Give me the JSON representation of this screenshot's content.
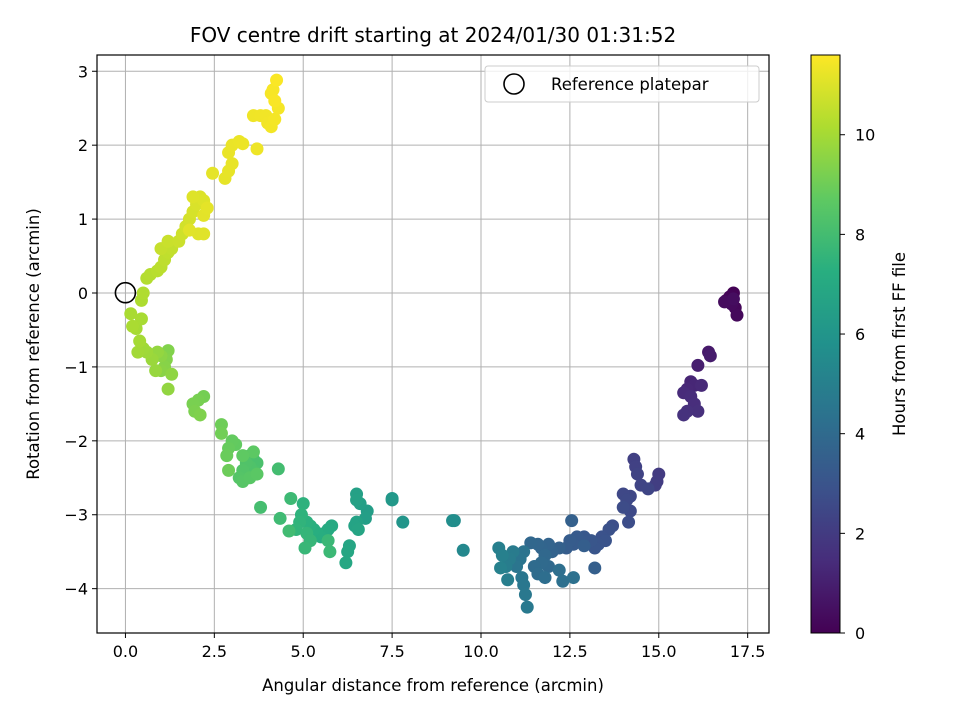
{
  "chart_data": {
    "type": "scatter",
    "title": "FOV centre drift starting at 2024/01/30 01:31:52",
    "xlabel": "Angular distance from reference (arcmin)",
    "ylabel": "Rotation from reference (arcmin)",
    "xlim": [
      -0.8,
      18.1
    ],
    "ylim": [
      -4.6,
      3.22
    ],
    "x_ticks": [
      0.0,
      2.5,
      5.0,
      7.5,
      10.0,
      12.5,
      15.0,
      17.5
    ],
    "x_tick_labels": [
      "0.0",
      "2.5",
      "5.0",
      "7.5",
      "10.0",
      "12.5",
      "15.0",
      "17.5"
    ],
    "y_ticks": [
      -4,
      -3,
      -2,
      -1,
      0,
      1,
      2,
      3
    ],
    "y_tick_labels": [
      "−4",
      "−3",
      "−2",
      "−1",
      "0",
      "1",
      "2",
      "3"
    ],
    "grid": true,
    "legend": {
      "position": "top-right",
      "entries": [
        "Reference platepar"
      ]
    },
    "colorbar": {
      "label": "Hours from first FF file",
      "colormap": "viridis",
      "range": [
        0,
        11.6
      ],
      "ticks": [
        0,
        2,
        4,
        6,
        8,
        10
      ],
      "tick_labels": [
        "0",
        "2",
        "4",
        "6",
        "8",
        "10"
      ]
    },
    "reference_point": {
      "x": 0,
      "y": 0,
      "name": "Reference platepar"
    },
    "points": [
      [
        17.1,
        0.0,
        0.05
      ],
      [
        17.0,
        -0.05,
        0.1
      ],
      [
        16.9,
        -0.1,
        0.15
      ],
      [
        17.15,
        -0.2,
        0.2
      ],
      [
        17.2,
        -0.3,
        0.25
      ],
      [
        17.05,
        -0.15,
        0.3
      ],
      [
        16.85,
        -0.12,
        0.35
      ],
      [
        17.1,
        -0.08,
        0.4
      ],
      [
        16.4,
        -0.8,
        0.8
      ],
      [
        16.45,
        -0.85,
        0.9
      ],
      [
        16.1,
        -0.98,
        1.0
      ],
      [
        15.9,
        -1.2,
        1.2
      ],
      [
        16.0,
        -1.25,
        1.25
      ],
      [
        15.8,
        -1.3,
        1.3
      ],
      [
        16.2,
        -1.25,
        1.35
      ],
      [
        15.7,
        -1.35,
        1.4
      ],
      [
        15.9,
        -1.4,
        1.45
      ],
      [
        16.0,
        -1.5,
        1.5
      ],
      [
        16.1,
        -1.6,
        1.55
      ],
      [
        15.8,
        -1.6,
        1.6
      ],
      [
        15.7,
        -1.65,
        1.65
      ],
      [
        15.0,
        -2.45,
        2.0
      ],
      [
        14.95,
        -2.55,
        2.05
      ],
      [
        14.9,
        -2.6,
        2.1
      ],
      [
        14.3,
        -2.25,
        2.2
      ],
      [
        14.35,
        -2.35,
        2.25
      ],
      [
        14.4,
        -2.45,
        2.3
      ],
      [
        14.5,
        -2.6,
        2.35
      ],
      [
        14.7,
        -2.65,
        2.4
      ],
      [
        14.2,
        -2.75,
        2.45
      ],
      [
        14.0,
        -2.72,
        2.5
      ],
      [
        14.1,
        -2.8,
        2.55
      ],
      [
        14.2,
        -2.95,
        2.6
      ],
      [
        14.0,
        -2.9,
        2.65
      ],
      [
        14.15,
        -3.1,
        2.7
      ],
      [
        13.7,
        -3.15,
        2.8
      ],
      [
        13.6,
        -3.2,
        2.85
      ],
      [
        13.4,
        -3.3,
        2.9
      ],
      [
        13.5,
        -3.35,
        2.95
      ],
      [
        13.3,
        -3.4,
        3.0
      ],
      [
        13.2,
        -3.45,
        3.05
      ],
      [
        13.1,
        -3.35,
        3.1
      ],
      [
        12.9,
        -3.3,
        3.15
      ],
      [
        12.8,
        -3.35,
        3.2
      ],
      [
        12.7,
        -3.3,
        3.25
      ],
      [
        12.6,
        -3.4,
        3.3
      ],
      [
        12.5,
        -3.35,
        3.35
      ],
      [
        12.4,
        -3.45,
        3.4
      ],
      [
        12.9,
        -3.42,
        3.45
      ],
      [
        13.2,
        -3.72,
        3.5
      ],
      [
        12.55,
        -3.08,
        3.55
      ],
      [
        12.2,
        -3.45,
        3.6
      ],
      [
        12.0,
        -3.5,
        3.65
      ],
      [
        11.9,
        -3.4,
        3.7
      ],
      [
        11.7,
        -3.45,
        3.75
      ],
      [
        11.6,
        -3.4,
        3.8
      ],
      [
        11.4,
        -3.38,
        3.85
      ],
      [
        11.8,
        -3.55,
        3.9
      ],
      [
        11.9,
        -3.7,
        3.95
      ],
      [
        11.7,
        -3.65,
        4.0
      ],
      [
        11.5,
        -3.7,
        4.05
      ],
      [
        11.6,
        -3.8,
        4.1
      ],
      [
        11.8,
        -3.85,
        4.15
      ],
      [
        12.2,
        -3.75,
        4.2
      ],
      [
        12.3,
        -3.9,
        4.25
      ],
      [
        12.6,
        -3.85,
        4.3
      ],
      [
        11.2,
        -3.5,
        4.4
      ],
      [
        11.1,
        -3.6,
        4.45
      ],
      [
        11.0,
        -3.7,
        4.5
      ],
      [
        11.15,
        -3.85,
        4.55
      ],
      [
        11.2,
        -3.95,
        4.6
      ],
      [
        11.25,
        -4.08,
        4.65
      ],
      [
        11.3,
        -4.25,
        4.7
      ],
      [
        10.9,
        -3.5,
        4.75
      ],
      [
        10.8,
        -3.6,
        4.8
      ],
      [
        10.7,
        -3.7,
        4.85
      ],
      [
        10.75,
        -3.88,
        4.9
      ],
      [
        10.5,
        -3.45,
        4.95
      ],
      [
        10.6,
        -3.55,
        5.0
      ],
      [
        10.55,
        -3.72,
        5.05
      ],
      [
        9.5,
        -3.48,
        5.4
      ],
      [
        9.25,
        -3.08,
        5.6
      ],
      [
        9.2,
        -3.08,
        5.65
      ],
      [
        7.8,
        -3.1,
        6.0
      ],
      [
        7.5,
        -2.78,
        6.1
      ],
      [
        7.5,
        -2.8,
        6.15
      ],
      [
        6.8,
        -2.95,
        6.4
      ],
      [
        6.75,
        -3.05,
        6.45
      ],
      [
        6.6,
        -2.85,
        6.5
      ],
      [
        6.5,
        -2.72,
        6.55
      ],
      [
        6.5,
        -2.8,
        6.6
      ],
      [
        6.5,
        -3.1,
        6.65
      ],
      [
        6.45,
        -3.15,
        6.7
      ],
      [
        6.55,
        -3.2,
        6.75
      ],
      [
        6.3,
        -3.42,
        6.8
      ],
      [
        6.25,
        -3.5,
        6.85
      ],
      [
        6.2,
        -3.65,
        6.9
      ],
      [
        5.8,
        -3.15,
        7.0
      ],
      [
        5.7,
        -3.2,
        7.05
      ],
      [
        5.6,
        -3.25,
        7.1
      ],
      [
        5.5,
        -3.3,
        7.15
      ],
      [
        5.4,
        -3.25,
        7.2
      ],
      [
        5.3,
        -3.2,
        7.25
      ],
      [
        5.2,
        -3.15,
        7.3
      ],
      [
        5.1,
        -3.1,
        7.35
      ],
      [
        5.0,
        -2.85,
        7.4
      ],
      [
        4.95,
        -3.0,
        7.45
      ],
      [
        4.9,
        -3.1,
        7.5
      ],
      [
        4.8,
        -3.2,
        7.55
      ],
      [
        5.1,
        -3.25,
        7.6
      ],
      [
        5.2,
        -3.35,
        7.65
      ],
      [
        5.05,
        -3.45,
        7.7
      ],
      [
        5.7,
        -3.35,
        7.75
      ],
      [
        5.75,
        -3.5,
        7.8
      ],
      [
        4.65,
        -2.78,
        7.85
      ],
      [
        4.35,
        -3.05,
        7.9
      ],
      [
        4.6,
        -3.22,
        7.95
      ],
      [
        4.3,
        -2.38,
        8.0
      ],
      [
        3.8,
        -2.9,
        8.05
      ],
      [
        3.5,
        -2.2,
        8.1
      ],
      [
        3.6,
        -2.25,
        8.15
      ],
      [
        3.7,
        -2.3,
        8.2
      ],
      [
        3.6,
        -2.4,
        8.25
      ],
      [
        3.5,
        -2.35,
        8.3
      ],
      [
        3.4,
        -2.3,
        8.35
      ],
      [
        3.3,
        -2.4,
        8.4
      ],
      [
        3.2,
        -2.5,
        8.45
      ],
      [
        3.3,
        -2.55,
        8.5
      ],
      [
        3.5,
        -2.5,
        8.55
      ],
      [
        3.7,
        -2.45,
        8.6
      ],
      [
        3.6,
        -2.15,
        8.65
      ],
      [
        3.3,
        -2.2,
        8.7
      ],
      [
        3.1,
        -2.05,
        8.75
      ],
      [
        3.0,
        -2.0,
        8.8
      ],
      [
        2.9,
        -2.1,
        8.85
      ],
      [
        2.85,
        -2.2,
        8.9
      ],
      [
        2.9,
        -2.4,
        8.95
      ],
      [
        2.7,
        -1.78,
        9.0
      ],
      [
        2.7,
        -1.9,
        9.05
      ],
      [
        2.2,
        -1.4,
        9.1
      ],
      [
        2.05,
        -1.45,
        9.15
      ],
      [
        1.9,
        -1.5,
        9.2
      ],
      [
        1.95,
        -1.6,
        9.25
      ],
      [
        2.1,
        -1.65,
        9.3
      ],
      [
        1.2,
        -0.78,
        9.35
      ],
      [
        1.15,
        -0.9,
        9.4
      ],
      [
        1.1,
        -1.0,
        9.45
      ],
      [
        1.0,
        -1.05,
        9.5
      ],
      [
        1.0,
        -0.85,
        9.55
      ],
      [
        1.3,
        -1.1,
        9.6
      ],
      [
        1.2,
        -1.3,
        9.65
      ],
      [
        0.9,
        -0.8,
        9.7
      ],
      [
        0.85,
        -1.05,
        9.75
      ],
      [
        0.75,
        -0.9,
        9.8
      ],
      [
        0.6,
        -0.8,
        9.85
      ],
      [
        0.5,
        -0.75,
        9.9
      ],
      [
        0.35,
        -0.8,
        9.95
      ],
      [
        0.4,
        -0.65,
        10.0
      ],
      [
        0.3,
        -0.48,
        10.02
      ],
      [
        0.45,
        -0.35,
        10.05
      ],
      [
        0.15,
        -0.28,
        10.08
      ],
      [
        0.2,
        -0.45,
        10.1
      ],
      [
        0.45,
        -0.1,
        10.15
      ],
      [
        0.5,
        0.0,
        10.2
      ],
      [
        0.6,
        0.2,
        10.25
      ],
      [
        0.7,
        0.25,
        10.3
      ],
      [
        0.9,
        0.3,
        10.35
      ],
      [
        1.0,
        0.35,
        10.4
      ],
      [
        1.1,
        0.45,
        10.45
      ],
      [
        1.2,
        0.55,
        10.5
      ],
      [
        1.3,
        0.6,
        10.55
      ],
      [
        1.0,
        0.6,
        10.6
      ],
      [
        1.2,
        0.7,
        10.65
      ],
      [
        1.5,
        0.7,
        10.7
      ],
      [
        1.6,
        0.8,
        10.75
      ],
      [
        1.7,
        0.9,
        10.8
      ],
      [
        1.8,
        1.0,
        10.85
      ],
      [
        1.9,
        1.1,
        10.9
      ],
      [
        2.0,
        1.2,
        10.95
      ],
      [
        2.1,
        1.3,
        11.0
      ],
      [
        2.2,
        1.25,
        11.02
      ],
      [
        1.9,
        1.3,
        11.04
      ],
      [
        2.05,
        0.8,
        11.06
      ],
      [
        2.2,
        0.8,
        11.08
      ],
      [
        1.8,
        0.85,
        11.1
      ],
      [
        2.2,
        1.05,
        11.12
      ],
      [
        2.3,
        1.15,
        11.14
      ],
      [
        2.45,
        1.62,
        11.16
      ],
      [
        2.8,
        1.55,
        11.18
      ],
      [
        2.9,
        1.65,
        11.2
      ],
      [
        3.0,
        1.75,
        11.22
      ],
      [
        2.9,
        1.9,
        11.24
      ],
      [
        3.0,
        2.0,
        11.26
      ],
      [
        3.2,
        2.05,
        11.28
      ],
      [
        3.3,
        2.02,
        11.3
      ],
      [
        3.7,
        1.95,
        11.32
      ],
      [
        3.6,
        2.4,
        11.34
      ],
      [
        3.8,
        2.4,
        11.36
      ],
      [
        3.95,
        2.4,
        11.38
      ],
      [
        4.0,
        2.3,
        11.4
      ],
      [
        4.1,
        2.25,
        11.42
      ],
      [
        4.2,
        2.35,
        11.44
      ],
      [
        4.3,
        2.5,
        11.46
      ],
      [
        4.1,
        2.7,
        11.48
      ],
      [
        4.15,
        2.75,
        11.5
      ],
      [
        4.2,
        2.6,
        11.52
      ],
      [
        4.25,
        2.88,
        11.55
      ]
    ]
  }
}
